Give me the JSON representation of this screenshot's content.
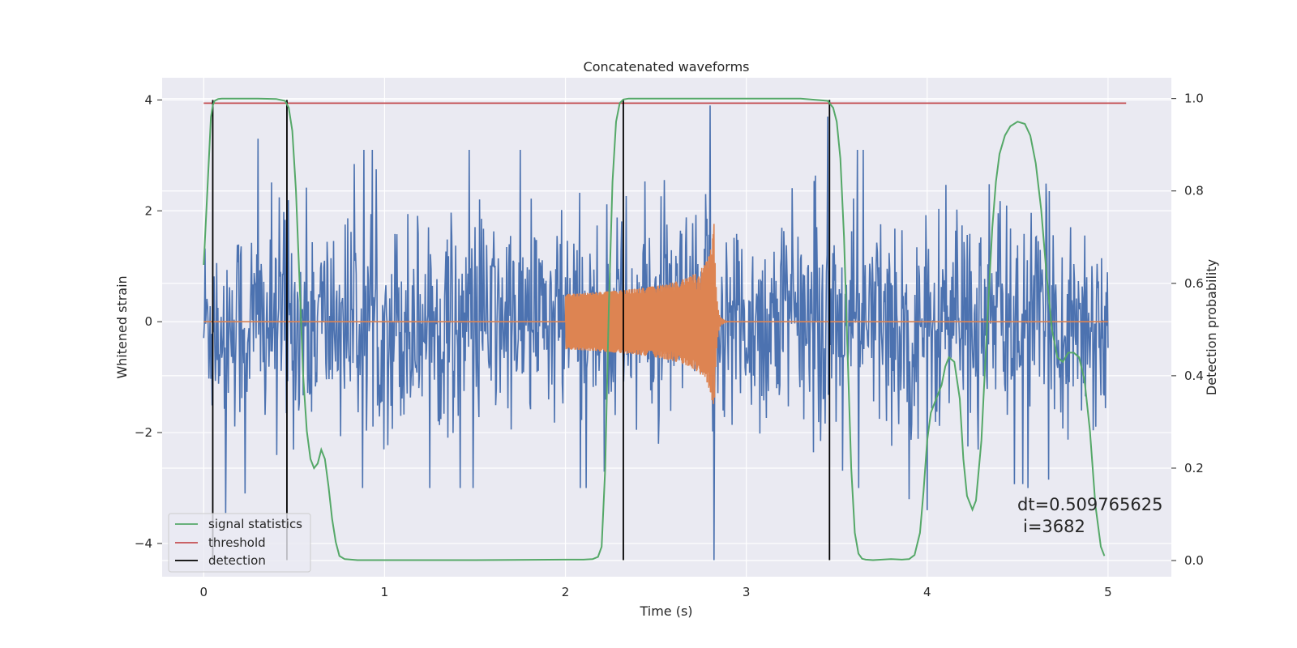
{
  "chart_data": {
    "type": "line",
    "title": "Concatenated waveforms",
    "xlabel": "Time (s)",
    "ylabel": "Whitened strain",
    "y2label": "Detection probability",
    "xlim": [
      -0.23,
      5.35
    ],
    "ylim": [
      -4.6,
      4.4
    ],
    "y2lim": [
      -0.035,
      1.045
    ],
    "x_ticks": [
      0,
      1,
      2,
      3,
      4,
      5
    ],
    "y_ticks": [
      -4,
      -2,
      0,
      2,
      4
    ],
    "y2_ticks": [
      0.0,
      0.2,
      0.4,
      0.6,
      0.8,
      1.0
    ],
    "y_tick_labels": [
      "−4",
      "−2",
      "0",
      "2",
      "4"
    ],
    "y2_tick_labels": [
      "0.0",
      "0.2",
      "0.4",
      "0.6",
      "0.8",
      "1.0"
    ],
    "grid": true,
    "legend_position": "lower-left",
    "colors": {
      "strain": "#4c72b0",
      "signal": "#dd8452",
      "statistics": "#55a868",
      "threshold": "#c44e52",
      "detection": "#000000",
      "plot_bg": "#eaeaf2",
      "grid": "#ffffff"
    },
    "strain_series": {
      "x_range": [
        0,
        5
      ],
      "noise_envelope": 2.5,
      "spikes": [
        {
          "x": 0.3,
          "y": 3.3
        },
        {
          "x": 0.23,
          "y": -3.1
        },
        {
          "x": 0.12,
          "y": -3.45
        },
        {
          "x": 2.8,
          "y": 3.9
        },
        {
          "x": 2.82,
          "y": -4.3
        },
        {
          "x": 3.45,
          "y": 3.7
        },
        {
          "x": 3.9,
          "y": -3.2
        },
        {
          "x": 4.0,
          "y": -3.4
        }
      ]
    },
    "signal_series": {
      "x_start": 2.0,
      "x_peak": 2.82,
      "peak_amplitude": 2.0,
      "start_amplitude": 0.5
    },
    "statistics_series": {
      "name": "signal statistics",
      "x": [
        0.0,
        0.02,
        0.04,
        0.05,
        0.06,
        0.08,
        0.1,
        0.15,
        0.2,
        0.3,
        0.4,
        0.45,
        0.47,
        0.49,
        0.51,
        0.53,
        0.55,
        0.57,
        0.59,
        0.61,
        0.63,
        0.65,
        0.67,
        0.69,
        0.71,
        0.73,
        0.75,
        0.78,
        0.85,
        1.0,
        1.5,
        2.0,
        2.1,
        2.15,
        2.18,
        2.2,
        2.22,
        2.24,
        2.26,
        2.28,
        2.3,
        2.32,
        2.35,
        2.4,
        2.6,
        3.0,
        3.3,
        3.45,
        3.48,
        3.5,
        3.52,
        3.54,
        3.56,
        3.58,
        3.6,
        3.62,
        3.64,
        3.66,
        3.7,
        3.8,
        3.86,
        3.9,
        3.93,
        3.96,
        3.98,
        4.0,
        4.02,
        4.05,
        4.08,
        4.1,
        4.12,
        4.15,
        4.18,
        4.2,
        4.22,
        4.25,
        4.27,
        4.3,
        4.33,
        4.36,
        4.38,
        4.4,
        4.43,
        4.46,
        4.5,
        4.54,
        4.57,
        4.6,
        4.63,
        4.66,
        4.69,
        4.72,
        4.75,
        4.78,
        4.81,
        4.84,
        4.87,
        4.9,
        4.93,
        4.96,
        4.98
      ],
      "y": [
        0.64,
        0.8,
        0.96,
        0.985,
        0.995,
        0.999,
        1.0,
        1.0,
        1.0,
        1.0,
        0.999,
        0.995,
        0.98,
        0.93,
        0.8,
        0.6,
        0.4,
        0.28,
        0.22,
        0.2,
        0.21,
        0.24,
        0.22,
        0.16,
        0.09,
        0.04,
        0.01,
        0.003,
        0.001,
        0.001,
        0.001,
        0.002,
        0.002,
        0.003,
        0.008,
        0.03,
        0.2,
        0.55,
        0.82,
        0.95,
        0.99,
        0.998,
        1.0,
        1.0,
        1.0,
        1.0,
        1.0,
        0.995,
        0.98,
        0.95,
        0.87,
        0.7,
        0.45,
        0.2,
        0.06,
        0.015,
        0.004,
        0.002,
        0.001,
        0.003,
        0.002,
        0.003,
        0.012,
        0.06,
        0.15,
        0.26,
        0.32,
        0.35,
        0.38,
        0.42,
        0.44,
        0.43,
        0.35,
        0.22,
        0.14,
        0.11,
        0.13,
        0.26,
        0.5,
        0.72,
        0.82,
        0.88,
        0.92,
        0.94,
        0.95,
        0.945,
        0.92,
        0.86,
        0.76,
        0.62,
        0.5,
        0.44,
        0.43,
        0.45,
        0.45,
        0.44,
        0.39,
        0.28,
        0.12,
        0.03,
        0.01
      ]
    },
    "threshold": {
      "name": "threshold",
      "value": 0.99,
      "x_range": [
        0,
        5.1
      ]
    },
    "detections": {
      "name": "detection",
      "x": [
        0.05,
        0.46,
        2.32,
        3.46
      ],
      "y_range": [
        -4.3,
        4.0
      ]
    },
    "legend": [
      "signal statistics",
      "threshold",
      "detection"
    ],
    "annotation": {
      "line1": "dt=0.509765625",
      "line2": "i=3682"
    }
  }
}
